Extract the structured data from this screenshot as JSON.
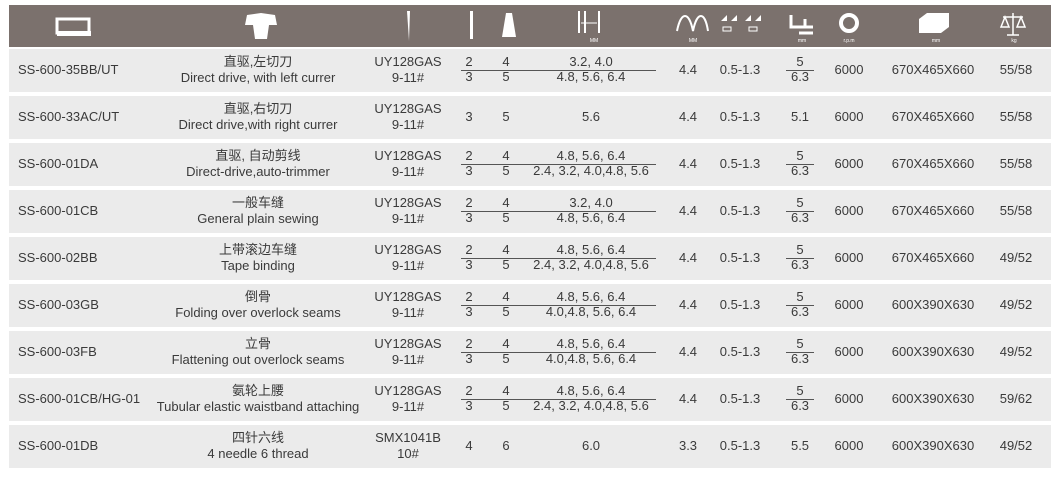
{
  "header": {
    "icon_labels": [
      "MM",
      "MM",
      "mm",
      "r.p.m",
      "mm",
      "kg"
    ]
  },
  "table": {
    "rows": [
      {
        "model": "SS-600-35BB/UT",
        "name_cn": "直驱,左切刀",
        "name_en": "Direct drive, with left currer",
        "needle": [
          "UY128GAS",
          "9-11#"
        ],
        "needles": [
          "2",
          "3"
        ],
        "threads": [
          "4",
          "5"
        ],
        "gauge": [
          "3.2, 4.0",
          "4.8, 5.6, 6.4"
        ],
        "stitch": "4.4",
        "feed": "0.5-1.3",
        "presser": [
          "5",
          "6.3"
        ],
        "speed": "6000",
        "size": "670X465X660",
        "weight": "55/58"
      },
      {
        "model": "SS-600-33AC/UT",
        "name_cn": "直驱,右切刀",
        "name_en": "Direct drive,with right currer",
        "needle": [
          "UY128GAS",
          "9-11#"
        ],
        "needles": [
          "3"
        ],
        "threads": [
          "5"
        ],
        "gauge": [
          "5.6"
        ],
        "stitch": "4.4",
        "feed": "0.5-1.3",
        "presser": [
          "5.1"
        ],
        "speed": "6000",
        "size": "670X465X660",
        "weight": "55/58"
      },
      {
        "model": "SS-600-01DA",
        "name_cn": "直驱, 自动剪线",
        "name_en": "Direct-drive,auto-trimmer",
        "needle": [
          "UY128GAS",
          "9-11#"
        ],
        "needles": [
          "2",
          "3"
        ],
        "threads": [
          "4",
          "5"
        ],
        "gauge": [
          "4.8, 5.6, 6.4",
          "2.4, 3.2, 4.0,4.8, 5.6"
        ],
        "stitch": "4.4",
        "feed": "0.5-1.3",
        "presser": [
          "5",
          "6.3"
        ],
        "speed": "6000",
        "size": "670X465X660",
        "weight": "55/58"
      },
      {
        "model": "SS-600-01CB",
        "name_cn": "一般车缝",
        "name_en": "General plain sewing",
        "needle": [
          "UY128GAS",
          "9-11#"
        ],
        "needles": [
          "2",
          "3"
        ],
        "threads": [
          "4",
          "5"
        ],
        "gauge": [
          "3.2, 4.0",
          "4.8, 5.6, 6.4"
        ],
        "stitch": "4.4",
        "feed": "0.5-1.3",
        "presser": [
          "5",
          "6.3"
        ],
        "speed": "6000",
        "size": "670X465X660",
        "weight": "55/58"
      },
      {
        "model": "SS-600-02BB",
        "name_cn": "上带滚边车缝",
        "name_en": "Tape binding",
        "needle": [
          "UY128GAS",
          "9-11#"
        ],
        "needles": [
          "2",
          "3"
        ],
        "threads": [
          "4",
          "5"
        ],
        "gauge": [
          "4.8, 5.6, 6.4",
          "2.4, 3.2, 4.0,4.8, 5.6"
        ],
        "stitch": "4.4",
        "feed": "0.5-1.3",
        "presser": [
          "5",
          "6.3"
        ],
        "speed": "6000",
        "size": "670X465X660",
        "weight": "49/52"
      },
      {
        "model": "SS-600-03GB",
        "name_cn": "倒骨",
        "name_en": "Folding over overlock seams",
        "needle": [
          "UY128GAS",
          "9-11#"
        ],
        "needles": [
          "2",
          "3"
        ],
        "threads": [
          "4",
          "5"
        ],
        "gauge": [
          "4.8, 5.6, 6.4",
          "4.0,4.8, 5.6, 6.4"
        ],
        "stitch": "4.4",
        "feed": "0.5-1.3",
        "presser": [
          "5",
          "6.3"
        ],
        "speed": "6000",
        "size": "600X390X630",
        "weight": "49/52"
      },
      {
        "model": "SS-600-03FB",
        "name_cn": "立骨",
        "name_en": "Flattening out overlock seams",
        "needle": [
          "UY128GAS",
          "9-11#"
        ],
        "needles": [
          "2",
          "3"
        ],
        "threads": [
          "4",
          "5"
        ],
        "gauge": [
          "4.8, 5.6, 6.4",
          "4.0,4.8, 5.6, 6.4"
        ],
        "stitch": "4.4",
        "feed": "0.5-1.3",
        "presser": [
          "5",
          "6.3"
        ],
        "speed": "6000",
        "size": "600X390X630",
        "weight": "49/52"
      },
      {
        "model": "SS-600-01CB/HG-01",
        "name_cn": "氨轮上腰",
        "name_en": "Tubular elastic waistband attaching",
        "needle": [
          "UY128GAS",
          "9-11#"
        ],
        "needles": [
          "2",
          "3"
        ],
        "threads": [
          "4",
          "5"
        ],
        "gauge": [
          "4.8, 5.6, 6.4",
          "2.4, 3.2, 4.0,4.8, 5.6"
        ],
        "stitch": "4.4",
        "feed": "0.5-1.3",
        "presser": [
          "5",
          "6.3"
        ],
        "speed": "6000",
        "size": "600X390X630",
        "weight": "59/62"
      },
      {
        "model": "SS-600-01DB",
        "name_cn": "四针六线",
        "name_en": "4 needle 6 thread",
        "needle": [
          "SMX1041B",
          "10#"
        ],
        "needles": [
          "4"
        ],
        "threads": [
          "6"
        ],
        "gauge": [
          "6.0"
        ],
        "stitch": "3.3",
        "feed": "0.5-1.3",
        "presser": [
          "5.5"
        ],
        "speed": "6000",
        "size": "600X390X630",
        "weight": "49/52"
      }
    ]
  }
}
